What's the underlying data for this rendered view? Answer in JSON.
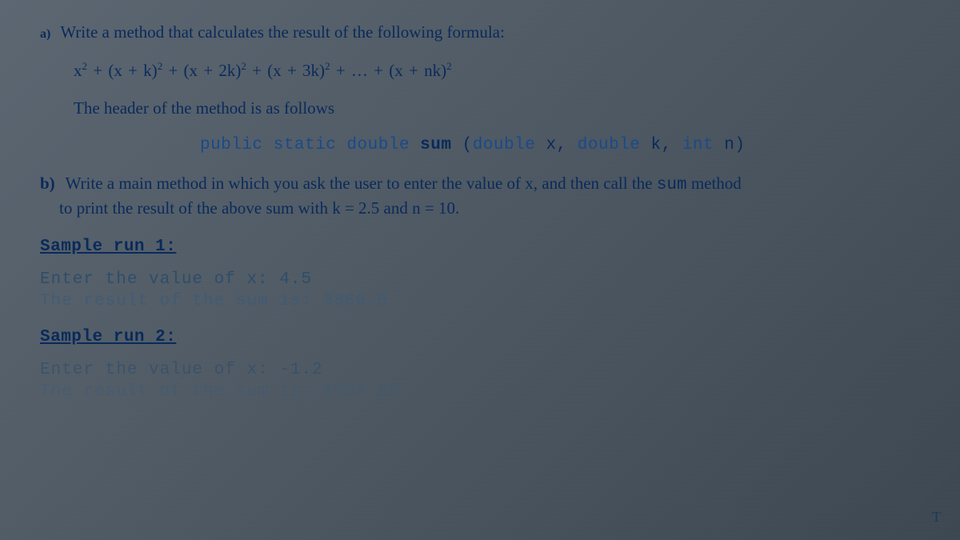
{
  "partA": {
    "bullet": "a)",
    "text": "Write a method that calculates the result of the following formula:",
    "formula_html": "x<sup>2</sup> + (x + k)<sup>2</sup> + (x + 2k)<sup>2</sup> + (x + 3k)<sup>2</sup> + … + (x + nk)<sup>2</sup>",
    "headerText": "The header of the method is as follows",
    "code": {
      "modifiers": "public static",
      "returnType": "double",
      "name": "sum",
      "params_plain": "(double x, double k, int n)"
    }
  },
  "partB": {
    "bullet": "b)",
    "line1": "Write a main method in which you ask the user to enter the value of x, and then call the ",
    "sumWord": "sum",
    "line1_end": " method",
    "line2": "to print the result of the above sum with k = 2.5 and n = 10."
  },
  "sample1": {
    "heading": "Sample run 1:",
    "enter": "Enter the value of x: 4.5",
    "result": "The result of the sum is: 3866.5"
  },
  "sample2": {
    "heading": "Sample run 2:",
    "enter": "Enter the value of x: -1.2",
    "result": "The result of the sum is: 2092.09"
  },
  "cornerMark": "T"
}
